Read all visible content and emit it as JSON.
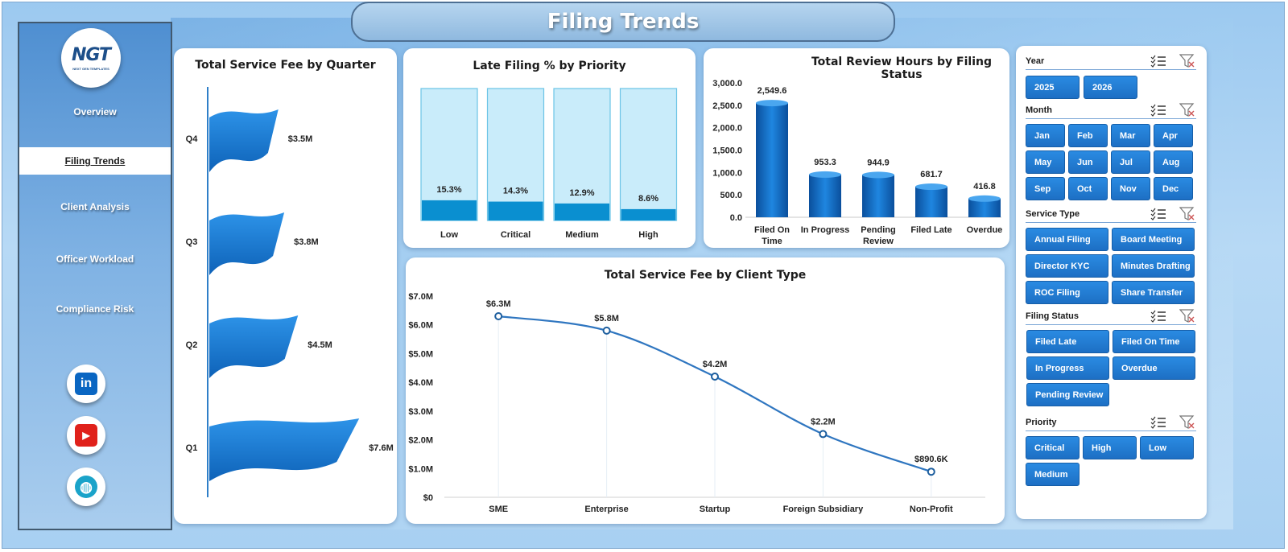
{
  "title": "Filing Trends",
  "logo": {
    "text_main": "NGT",
    "text_sub": "NEXT GEN TEMPLATES"
  },
  "nav": [
    {
      "label": "Overview",
      "active": false
    },
    {
      "label": "Filing Trends",
      "active": true
    },
    {
      "label": "Client Analysis",
      "active": false
    },
    {
      "label": "Officer Workload",
      "active": false
    },
    {
      "label": "Compliance Risk",
      "active": false
    }
  ],
  "social": [
    {
      "icon": "linkedin-icon",
      "glyph": "in",
      "color": "#0a66c2"
    },
    {
      "icon": "youtube-icon",
      "glyph": "▶",
      "color": "#e0211b"
    },
    {
      "icon": "globe-icon",
      "glyph": "◍",
      "color": "#1aa3c9"
    }
  ],
  "chart_data": [
    {
      "id": "fee_by_quarter",
      "type": "bar",
      "title": "Total Service Fee by Quarter",
      "categories": [
        "Q4",
        "Q3",
        "Q2",
        "Q1"
      ],
      "values": [
        3.5,
        3.8,
        4.5,
        7.6
      ],
      "value_labels": [
        "$3.5M",
        "$3.8M",
        "$4.5M",
        "$7.6M"
      ],
      "unit": "$M"
    },
    {
      "id": "late_filing_by_priority",
      "type": "bar",
      "title": "Late Filing % by Priority",
      "categories": [
        "Low",
        "Critical",
        "Medium",
        "High"
      ],
      "values": [
        15.3,
        14.3,
        12.9,
        8.6
      ],
      "value_labels": [
        "15.3%",
        "14.3%",
        "12.9%",
        "8.6%"
      ],
      "ylim": [
        0,
        100
      ]
    },
    {
      "id": "review_hours_by_status",
      "type": "bar",
      "title": "Total Review Hours by Filing Status",
      "categories": [
        "Filed On Time",
        "In Progress",
        "Pending Review",
        "Filed Late",
        "Overdue"
      ],
      "category_lines": [
        [
          "Filed On",
          "Time"
        ],
        [
          "In Progress"
        ],
        [
          "Pending",
          "Review"
        ],
        [
          "Filed Late"
        ],
        [
          "Overdue"
        ]
      ],
      "values": [
        2549.6,
        953.3,
        944.9,
        681.7,
        416.8
      ],
      "value_labels": [
        "2,549.6",
        "953.3",
        "944.9",
        "681.7",
        "416.8"
      ],
      "ylim": [
        0,
        3000
      ],
      "yticks": [
        0,
        500,
        1000,
        1500,
        2000,
        2500,
        3000
      ],
      "ytick_labels": [
        "0.0",
        "500.0",
        "1,000.0",
        "1,500.0",
        "2,000.0",
        "2,500.0",
        "3,000.0"
      ]
    },
    {
      "id": "fee_by_client_type",
      "type": "line",
      "title": "Total Service Fee by Client Type",
      "categories": [
        "SME",
        "Enterprise",
        "Startup",
        "Foreign Subsidiary",
        "Non-Profit"
      ],
      "values": [
        6.3,
        5.8,
        4.2,
        2.2,
        0.8906
      ],
      "value_labels": [
        "$6.3M",
        "$5.8M",
        "$4.2M",
        "$2.2M",
        "$890.6K"
      ],
      "ylim": [
        0,
        7
      ],
      "yticks": [
        0,
        1,
        2,
        3,
        4,
        5,
        6,
        7
      ],
      "ytick_labels": [
        "$0",
        "$1.0M",
        "$2.0M",
        "$3.0M",
        "$4.0M",
        "$5.0M",
        "$6.0M",
        "$7.0M"
      ]
    }
  ],
  "slicers": {
    "year": {
      "label": "Year",
      "options": [
        "2025",
        "2026"
      ]
    },
    "month": {
      "label": "Month",
      "options": [
        "Jan",
        "Feb",
        "Mar",
        "Apr",
        "May",
        "Jun",
        "Jul",
        "Aug",
        "Sep",
        "Oct",
        "Nov",
        "Dec"
      ]
    },
    "service_type": {
      "label": "Service Type",
      "options": [
        "Annual Filing",
        "Board Meeting",
        "Director KYC",
        "Minutes Drafting",
        "ROC Filing",
        "Share Transfer"
      ]
    },
    "filing_status": {
      "label": "Filing Status",
      "options": [
        "Filed Late",
        "Filed On Time",
        "In Progress",
        "Overdue",
        "Pending Review"
      ]
    },
    "priority": {
      "label": "Priority",
      "options": [
        "Critical",
        "High",
        "Low",
        "Medium"
      ]
    }
  },
  "colors": {
    "accent": "#1d6fc4",
    "bar_dark": "#0b63b6",
    "late_fill": "#0a8fd0",
    "late_bg": "#c9ecfa",
    "line": "#2f76c0"
  }
}
